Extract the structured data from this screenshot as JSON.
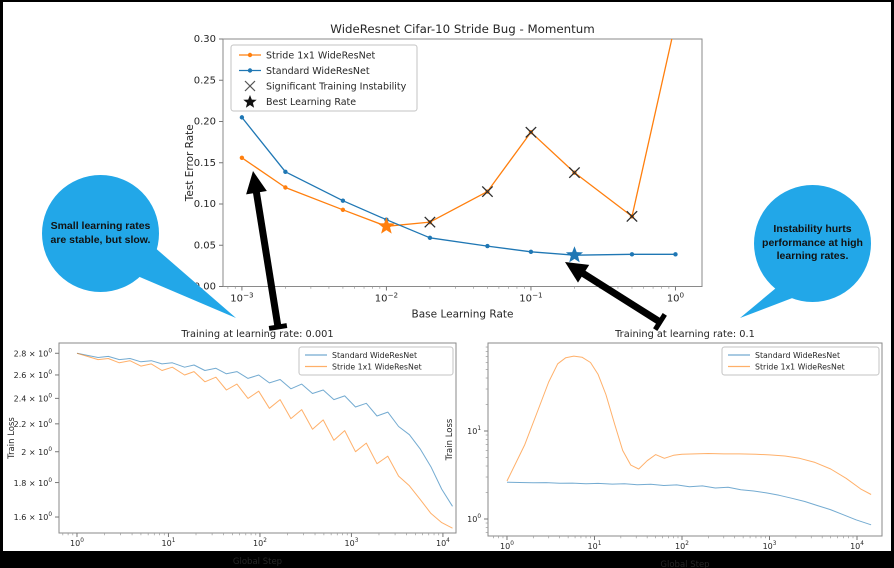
{
  "frame": {
    "background": "#000000",
    "canvas": "#ffffff"
  },
  "annotations": {
    "left_bubble": {
      "lines": [
        "Small learning rates",
        "are stable, but slow."
      ],
      "color": "#22a7e8",
      "text_color": "#111111"
    },
    "right_bubble": {
      "lines": [
        "Instability hurts",
        "performance at high",
        "learning rates."
      ],
      "color": "#22a7e8",
      "text_color": "#111111"
    }
  },
  "chart_data": [
    {
      "id": "top",
      "type": "line",
      "title": "WideResnet Cifar-10 Stride Bug - Momentum",
      "xlabel": "Base Learning Rate",
      "ylabel": "Test Error Rate",
      "x_scale": "log",
      "y_scale": "linear",
      "x_range": [
        0.00074,
        1.526
      ],
      "y_range": [
        0.0,
        0.3
      ],
      "x_ticks": [
        {
          "v": 0.001,
          "label": "10^{−3}"
        },
        {
          "v": 0.01,
          "label": "10^{−2}"
        },
        {
          "v": 0.1,
          "label": "10^{−1}"
        },
        {
          "v": 1,
          "label": "10^{0}"
        }
      ],
      "y_ticks": [
        {
          "v": 0.0,
          "label": "0.00"
        },
        {
          "v": 0.05,
          "label": "0.05"
        },
        {
          "v": 0.1,
          "label": "0.10"
        },
        {
          "v": 0.15,
          "label": "0.15"
        },
        {
          "v": 0.2,
          "label": "0.20"
        },
        {
          "v": 0.25,
          "label": "0.25"
        },
        {
          "v": 0.3,
          "label": "0.30"
        }
      ],
      "series": [
        {
          "name": "Stride 1x1 WideResNet",
          "color": "#ff7f0e",
          "marker": "dot",
          "width": 1.3,
          "opacity": 1,
          "x": [
            0.001,
            0.002,
            0.005,
            0.01,
            0.02,
            0.05,
            0.1,
            0.2,
            0.5,
            1.0
          ],
          "y": [
            0.156,
            0.12,
            0.093,
            0.073,
            0.078,
            0.115,
            0.187,
            0.138,
            0.085,
            0.32
          ]
        },
        {
          "name": "Standard WideResNet",
          "color": "#1f77b4",
          "marker": "dot",
          "width": 1.3,
          "opacity": 1,
          "x": [
            0.001,
            0.002,
            0.005,
            0.01,
            0.02,
            0.05,
            0.1,
            0.2,
            0.5,
            1.0
          ],
          "y": [
            0.205,
            0.139,
            0.104,
            0.081,
            0.059,
            0.049,
            0.042,
            0.038,
            0.039,
            0.039
          ]
        }
      ],
      "instability_markers": {
        "label": "Significant Training Instability",
        "color": "#2d2d2d",
        "x": [
          0.02,
          0.05,
          0.1,
          0.2,
          0.5
        ],
        "y": [
          0.078,
          0.115,
          0.187,
          0.138,
          0.085
        ]
      },
      "best_markers": {
        "label": "Best Learning Rate",
        "points": [
          {
            "x": 0.01,
            "y": 0.073,
            "color": "#ff7f0e"
          },
          {
            "x": 0.2,
            "y": 0.038,
            "color": "#1f77b4"
          }
        ]
      },
      "legend": {
        "items": [
          {
            "marker": "line-dot",
            "color": "#ff7f0e",
            "label": "Stride 1x1 WideResNet"
          },
          {
            "marker": "line-dot",
            "color": "#1f77b4",
            "label": "Standard WideResNet"
          },
          {
            "marker": "x",
            "color": "#555555",
            "label": "Significant Training Instability"
          },
          {
            "marker": "star",
            "color": "#111111",
            "label": "Best Learning Rate"
          }
        ]
      }
    },
    {
      "id": "bl",
      "type": "line",
      "title": "Training at learning rate: 0.001",
      "xlabel": "Global Step",
      "ylabel": "Train Loss",
      "x_scale": "log",
      "y_scale": "log",
      "x_range": [
        0.636,
        13900
      ],
      "y_range": [
        1.515,
        2.9
      ],
      "x_ticks": [
        {
          "v": 1,
          "label": "10^{0}"
        },
        {
          "v": 10,
          "label": "10^{1}"
        },
        {
          "v": 100,
          "label": "10^{2}"
        },
        {
          "v": 1000,
          "label": "10^{3}"
        },
        {
          "v": 10000,
          "label": "10^{4}"
        }
      ],
      "y_ticks": [
        {
          "v": 2.8,
          "label": "2.8 × 10^{0}"
        },
        {
          "v": 2.6,
          "label": "2.6 × 10^{0}"
        },
        {
          "v": 2.4,
          "label": "2.4 × 10^{0}"
        },
        {
          "v": 2.2,
          "label": "2.2 × 10^{0}"
        },
        {
          "v": 2.0,
          "label": "2 × 10^{0}"
        },
        {
          "v": 1.8,
          "label": "1.8 × 10^{0}"
        },
        {
          "v": 1.6,
          "label": "1.6 × 10^{0}"
        }
      ],
      "series": [
        {
          "name": "Standard WideResNet",
          "color": "#1f77b4",
          "marker": null,
          "width": 1.0,
          "opacity": 0.62,
          "x": [
            1,
            1.3,
            1.7,
            2.2,
            2.9,
            3.8,
            5,
            6.5,
            8.5,
            11,
            15,
            19,
            25,
            33,
            43,
            56,
            74,
            97,
            127,
            166,
            218,
            286,
            375,
            491,
            644,
            845,
            1108,
            1453,
            1905,
            2499,
            3277,
            4298,
            5637,
            7393,
            9695,
            12715
          ],
          "y": [
            2.8,
            2.78,
            2.76,
            2.77,
            2.74,
            2.75,
            2.72,
            2.73,
            2.7,
            2.71,
            2.67,
            2.69,
            2.64,
            2.66,
            2.61,
            2.63,
            2.57,
            2.6,
            2.53,
            2.56,
            2.48,
            2.52,
            2.44,
            2.47,
            2.39,
            2.42,
            2.33,
            2.36,
            2.26,
            2.29,
            2.18,
            2.12,
            2.02,
            1.9,
            1.76,
            1.66
          ]
        },
        {
          "name": "Stride 1x1 WideResNet",
          "color": "#ff7f0e",
          "marker": null,
          "width": 1.0,
          "opacity": 0.62,
          "x": [
            1,
            1.3,
            1.7,
            2.2,
            2.9,
            3.8,
            5,
            6.5,
            8.5,
            11,
            15,
            19,
            25,
            33,
            43,
            56,
            74,
            97,
            127,
            166,
            218,
            286,
            375,
            491,
            644,
            845,
            1108,
            1453,
            1905,
            2499,
            3277,
            4298,
            5637,
            7393,
            9695,
            12715
          ],
          "y": [
            2.8,
            2.77,
            2.74,
            2.75,
            2.71,
            2.73,
            2.68,
            2.7,
            2.64,
            2.67,
            2.6,
            2.63,
            2.54,
            2.58,
            2.47,
            2.52,
            2.4,
            2.46,
            2.32,
            2.39,
            2.24,
            2.31,
            2.16,
            2.23,
            2.08,
            2.15,
            2.0,
            2.06,
            1.92,
            1.97,
            1.84,
            1.78,
            1.7,
            1.62,
            1.57,
            1.54
          ]
        }
      ],
      "legend": {
        "items": [
          {
            "marker": "line",
            "color": "#1f77b4",
            "label": "Standard WideResNet"
          },
          {
            "marker": "line",
            "color": "#ff7f0e",
            "label": "Stride 1x1 WideResNet"
          }
        ]
      }
    },
    {
      "id": "br",
      "type": "line",
      "title": "Training at learning rate: 0.1",
      "xlabel": "Global Step",
      "ylabel": "Train Loss",
      "x_scale": "log",
      "y_scale": "log",
      "x_range": [
        0.607,
        19300
      ],
      "y_range": [
        0.641,
        100
      ],
      "x_ticks": [
        {
          "v": 1,
          "label": "10^{0}"
        },
        {
          "v": 10,
          "label": "10^{1}"
        },
        {
          "v": 100,
          "label": "10^{2}"
        },
        {
          "v": 1000,
          "label": "10^{3}"
        },
        {
          "v": 10000,
          "label": "10^{4}"
        }
      ],
      "y_ticks": [
        {
          "v": 1,
          "label": "10^{0}"
        },
        {
          "v": 10,
          "label": "10^{1}"
        }
      ],
      "series": [
        {
          "name": "Standard WideResNet",
          "color": "#1f77b4",
          "marker": null,
          "width": 1.0,
          "opacity": 0.62,
          "x": [
            1,
            1.4,
            2,
            2.8,
            4,
            5.6,
            8,
            11,
            16,
            22,
            31,
            44,
            62,
            87,
            122,
            171,
            240,
            336,
            470,
            659,
            922,
            1291,
            1808,
            2531,
            3544,
            4962,
            6947,
            9726,
            14500
          ],
          "y": [
            2.62,
            2.6,
            2.58,
            2.59,
            2.55,
            2.56,
            2.52,
            2.54,
            2.49,
            2.51,
            2.45,
            2.48,
            2.4,
            2.44,
            2.33,
            2.38,
            2.25,
            2.3,
            2.15,
            2.08,
            1.98,
            1.86,
            1.72,
            1.58,
            1.42,
            1.28,
            1.12,
            0.98,
            0.86
          ]
        },
        {
          "name": "Stride 1x1 WideResNet",
          "color": "#ff7f0e",
          "marker": null,
          "width": 1.0,
          "opacity": 0.62,
          "x": [
            1,
            1.6,
            2.2,
            3,
            3.8,
            4.7,
            5.8,
            7.2,
            9,
            11,
            13.5,
            17,
            21,
            26,
            32,
            40,
            50,
            63,
            80,
            100,
            140,
            200,
            300,
            450,
            700,
            1000,
            1500,
            2200,
            3300,
            5000,
            7500,
            11000,
            14500
          ],
          "y": [
            2.7,
            7,
            16,
            36,
            58,
            68,
            71,
            69,
            60,
            44,
            26,
            12,
            6.0,
            4.1,
            3.7,
            4.6,
            5.4,
            4.9,
            5.3,
            5.45,
            5.5,
            5.55,
            5.5,
            5.5,
            5.45,
            5.35,
            5.2,
            4.9,
            4.4,
            3.7,
            2.9,
            2.2,
            1.9
          ]
        }
      ],
      "legend": {
        "items": [
          {
            "marker": "line",
            "color": "#1f77b4",
            "label": "Standard WideResNet"
          },
          {
            "marker": "line",
            "color": "#ff7f0e",
            "label": "Stride 1x1 WideResNet"
          }
        ]
      }
    }
  ]
}
